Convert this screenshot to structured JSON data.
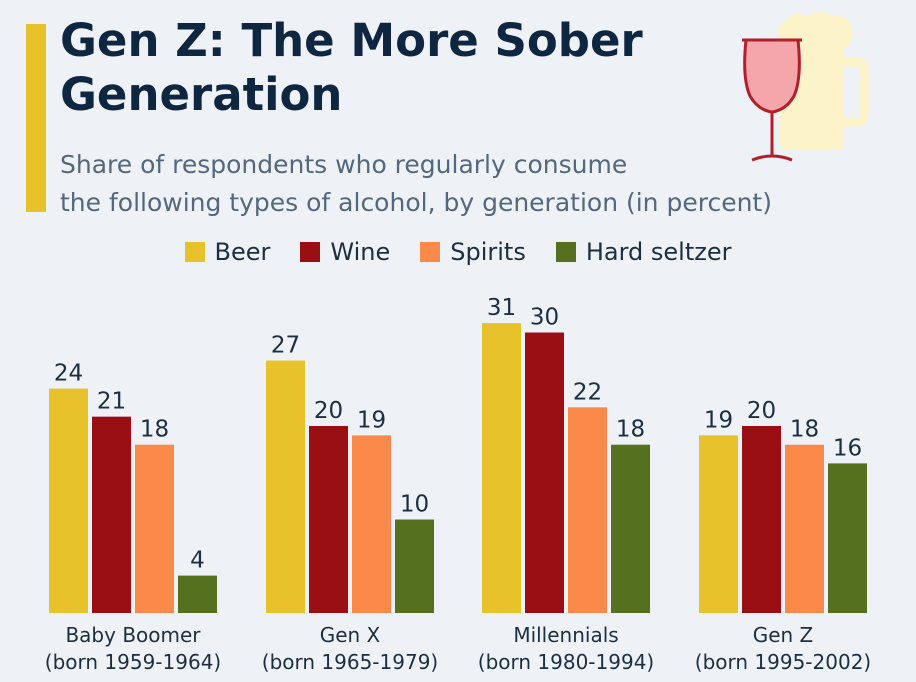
{
  "title": "Gen Z: The More Sober Generation",
  "subtitle_line1": "Share of respondents who regularly consume",
  "subtitle_line2": "the following types of alcohol, by generation (in percent)",
  "colors": {
    "accent": "#e8c22a",
    "beer": "#e8c22a",
    "wine": "#9a0f14",
    "spirits": "#fb8a4a",
    "hard_seltzer": "#55711f",
    "text": "#1d2e40",
    "background": "#eef2f7"
  },
  "icons": [
    "wine-glass-icon",
    "beer-mug-icon"
  ],
  "chart_data": {
    "type": "bar",
    "title": "Gen Z: The More Sober Generation",
    "subtitle": "Share of respondents who regularly consume the following types of alcohol, by generation (in percent)",
    "xlabel": "",
    "ylabel": "",
    "ylim": [
      0,
      31
    ],
    "grid": false,
    "legend_position": "top",
    "categories": [
      [
        "Baby Boomer",
        "(born 1959-1964)"
      ],
      [
        "Gen X",
        "(born 1965-1979)"
      ],
      [
        "Millennials",
        "(born 1980-1994)"
      ],
      [
        "Gen Z",
        "(born 1995-2002)"
      ]
    ],
    "series": [
      {
        "name": "Beer",
        "color": "#e8c22a",
        "values": [
          24,
          27,
          31,
          19
        ]
      },
      {
        "name": "Wine",
        "color": "#9a0f14",
        "values": [
          21,
          20,
          30,
          20
        ]
      },
      {
        "name": "Spirits",
        "color": "#fb8a4a",
        "values": [
          18,
          19,
          22,
          18
        ]
      },
      {
        "name": "Hard seltzer",
        "color": "#55711f",
        "values": [
          4,
          10,
          18,
          16
        ]
      }
    ]
  }
}
